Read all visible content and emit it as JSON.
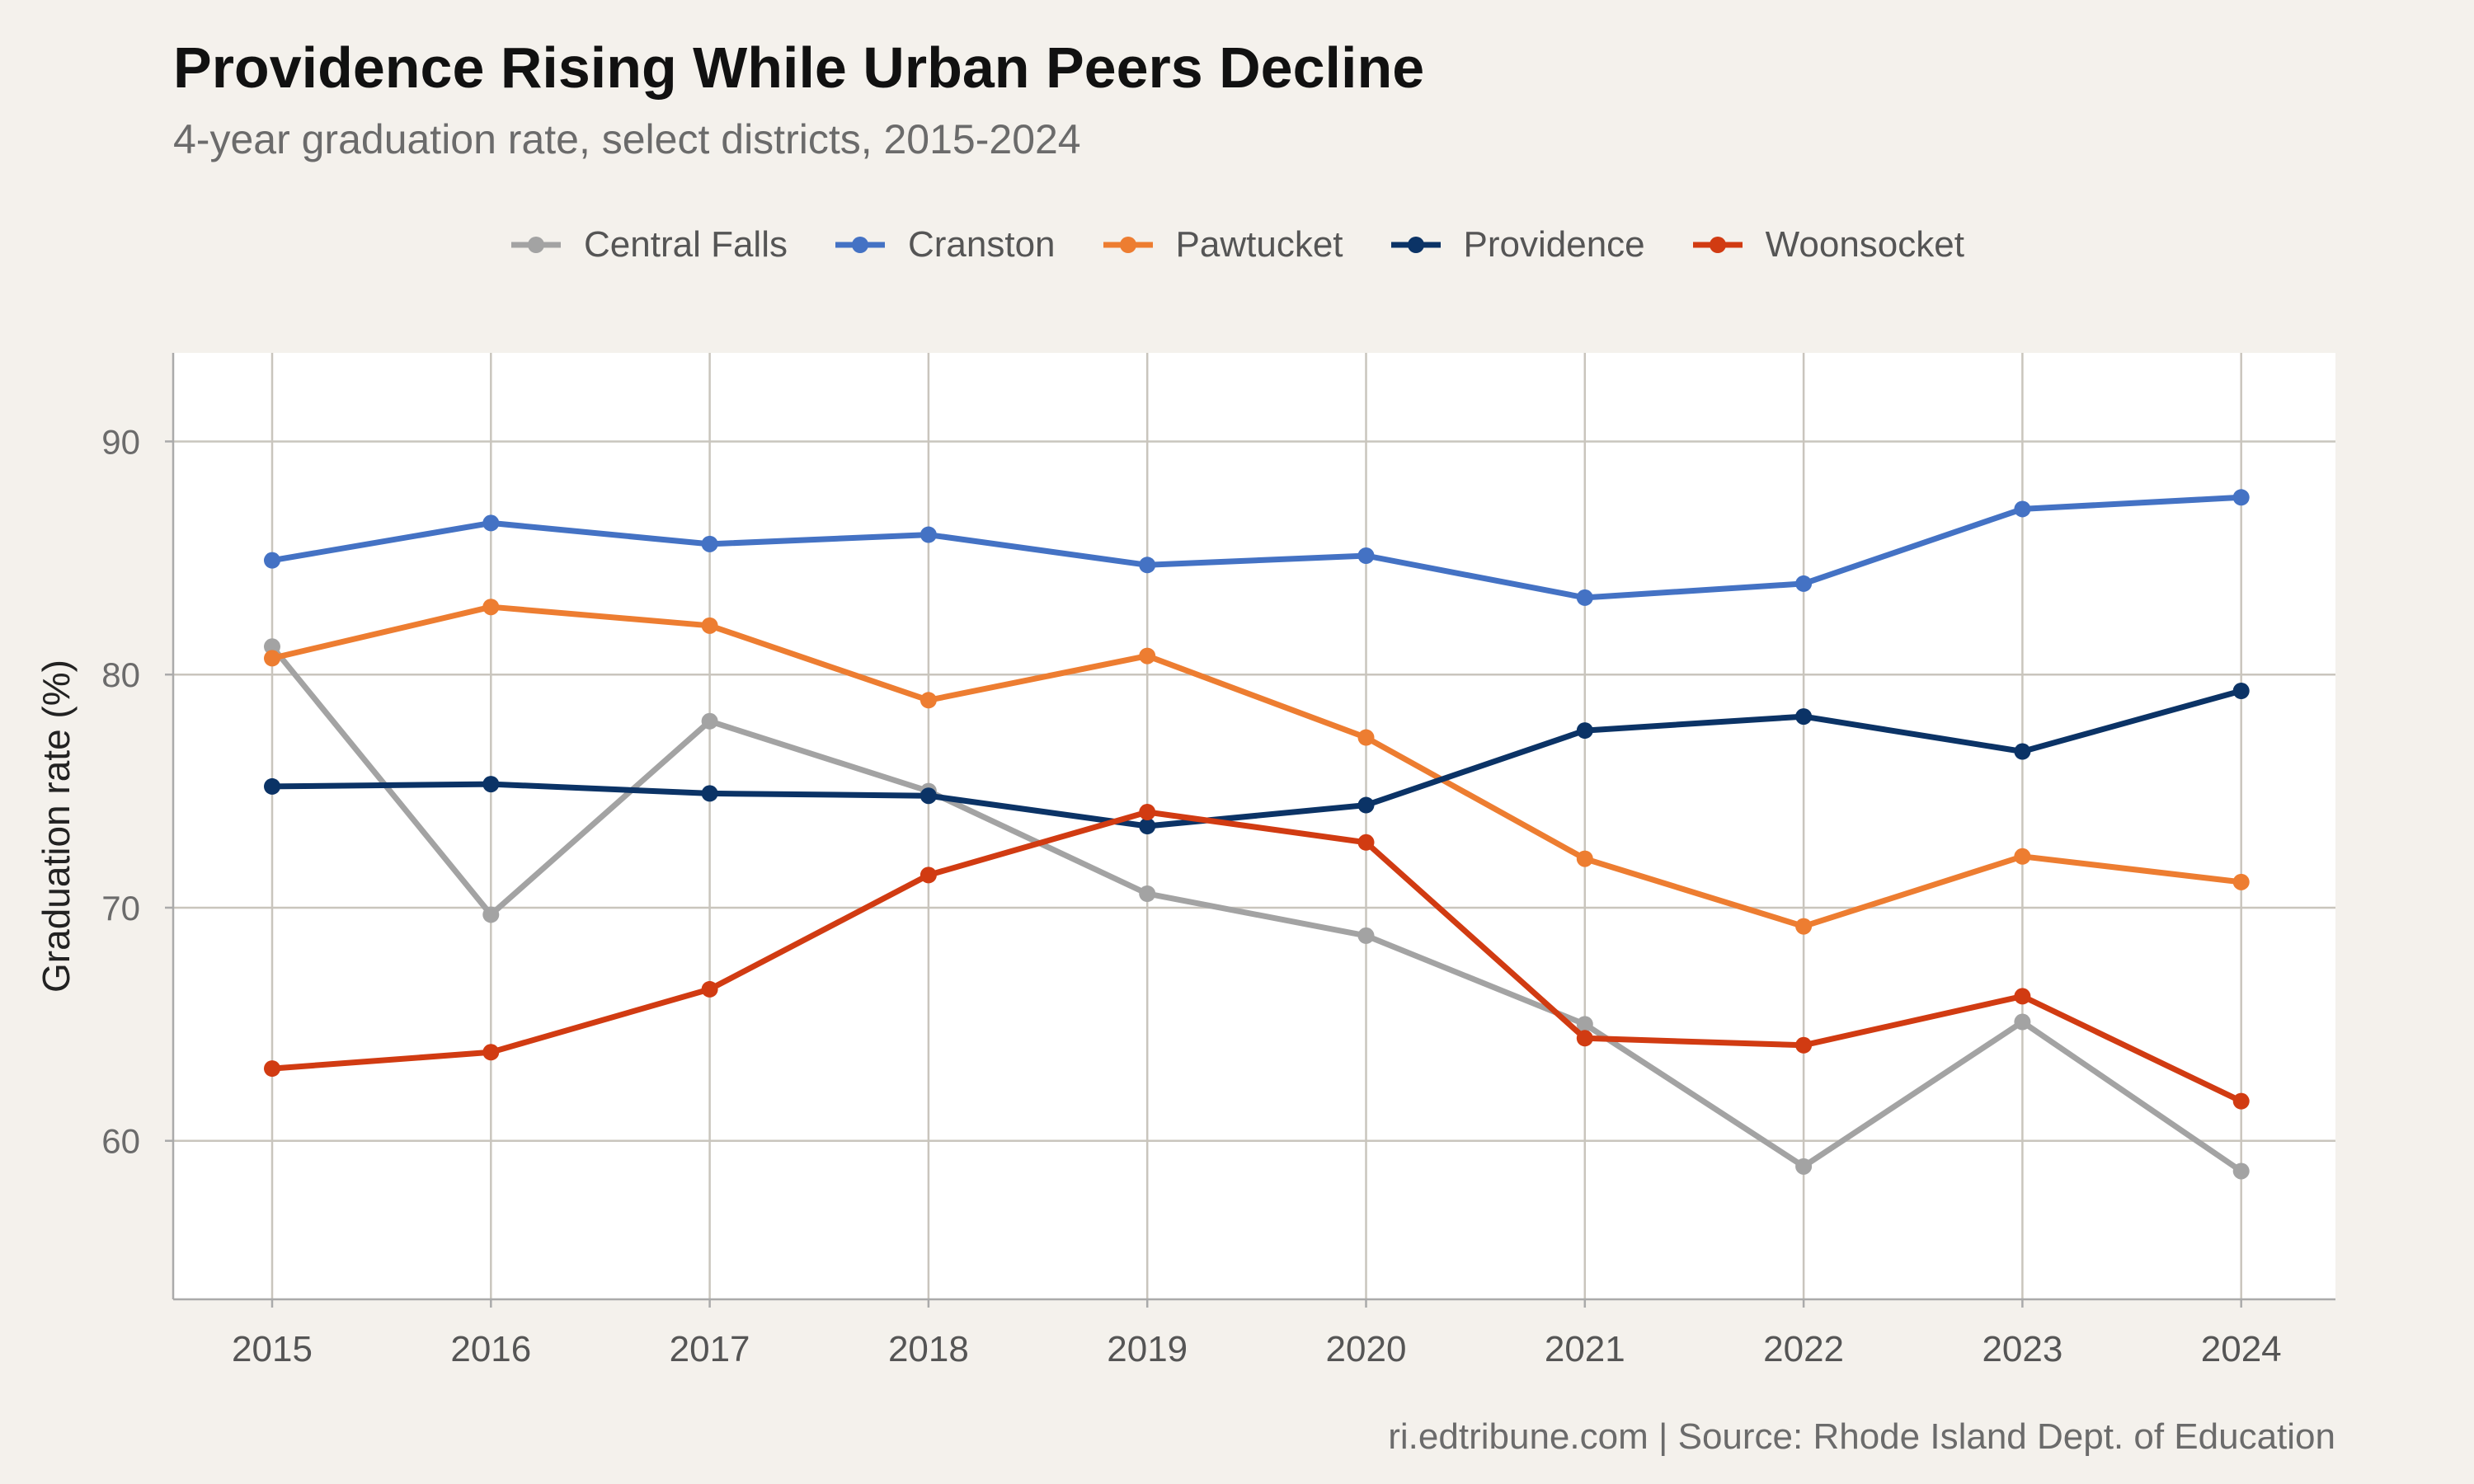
{
  "chart_data": {
    "type": "line",
    "title": "Providence Rising While Urban Peers Decline",
    "subtitle": "4-year graduation rate, select districts, 2015-2024",
    "xlabel": "",
    "ylabel": "Graduation rate (%)",
    "caption": "ri.edtribune.com | Source: Rhode Island Dept. of Education",
    "x": [
      2015,
      2016,
      2017,
      2018,
      2019,
      2020,
      2021,
      2022,
      2023,
      2024
    ],
    "ylim": [
      53.2,
      93.8
    ],
    "yticks": [
      60,
      70,
      80,
      90
    ],
    "grid": true,
    "legend_position": "top",
    "series": [
      {
        "name": "Central Falls",
        "color": "#a3a3a3",
        "values": [
          81.2,
          69.7,
          78.0,
          75.0,
          70.6,
          68.8,
          65.0,
          58.9,
          65.1,
          58.7
        ]
      },
      {
        "name": "Cranston",
        "color": "#4472c4",
        "values": [
          84.9,
          86.5,
          85.6,
          86.0,
          84.7,
          85.1,
          83.3,
          83.9,
          87.1,
          87.6
        ]
      },
      {
        "name": "Pawtucket",
        "color": "#ed7d31",
        "values": [
          80.7,
          82.9,
          82.1,
          78.9,
          80.8,
          77.3,
          72.1,
          69.2,
          72.2,
          71.1
        ]
      },
      {
        "name": "Providence",
        "color": "#0b3366",
        "values": [
          75.2,
          75.3,
          74.9,
          74.8,
          73.5,
          74.4,
          77.6,
          78.2,
          76.7,
          79.3
        ]
      },
      {
        "name": "Woonsocket",
        "color": "#d13b12",
        "values": [
          63.1,
          63.8,
          66.5,
          71.4,
          74.1,
          72.8,
          64.4,
          64.1,
          66.2,
          61.7
        ]
      }
    ]
  }
}
